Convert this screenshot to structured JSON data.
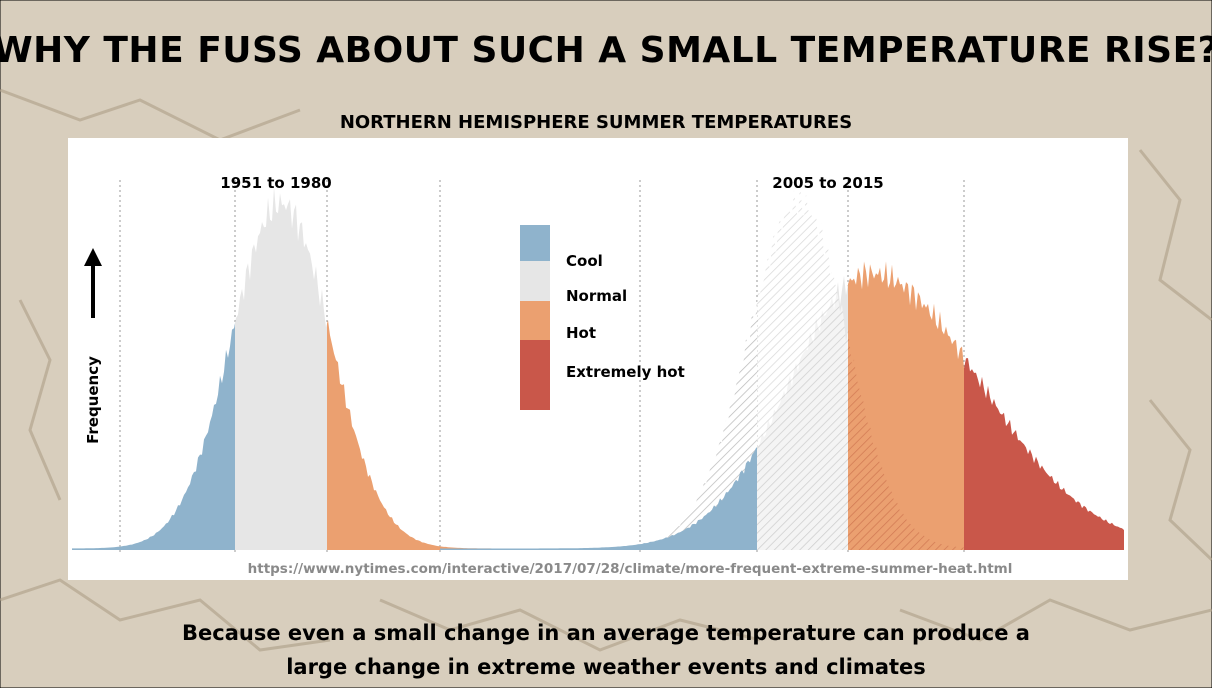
{
  "title": "WHY THE FUSS ABOUT SUCH A SMALL TEMPERATURE RISE?",
  "chart": {
    "subtitle": "NORTHERN HEMISPHERE SUMMER TEMPERATURES",
    "period_labels": [
      "1951 to 1980",
      "2005 to 2015"
    ],
    "legend": [
      "Cool",
      "Normal",
      "Hot",
      "Extremely hot"
    ],
    "y_axis_label": "Frequency",
    "source_url": "https://www.nytimes.com/interactive/2017/07/28/climate/more-frequent-extreme-summer-heat.html"
  },
  "caption": [
    "Because even a small change in an average temperature can produce a",
    "large change in extreme weather events and climates"
  ]
}
